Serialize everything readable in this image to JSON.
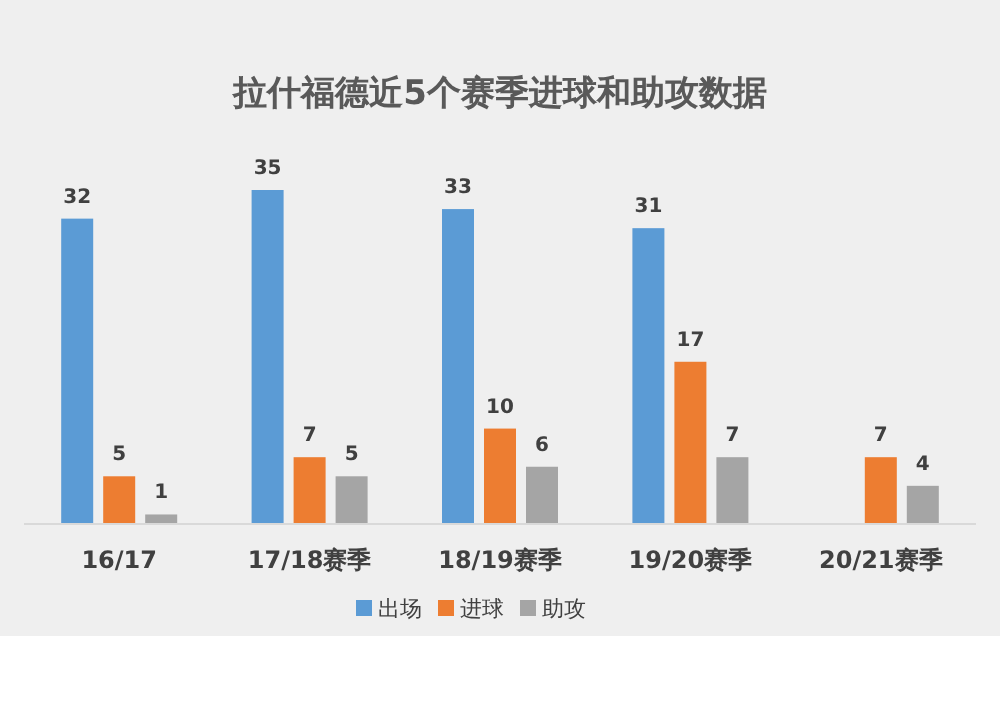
{
  "chart_data": {
    "type": "bar",
    "title": "拉什福德近5个赛季进球和助攻数据",
    "categories": [
      "16/17",
      "17/18赛季",
      "18/19赛季",
      "19/20赛季",
      "20/21赛季"
    ],
    "series": [
      {
        "name": "出场",
        "color": "#5b9bd5",
        "values": [
          32,
          35,
          33,
          31,
          null
        ]
      },
      {
        "name": "进球",
        "color": "#ed7d31",
        "values": [
          5,
          7,
          10,
          17,
          7
        ]
      },
      {
        "name": "助攻",
        "color": "#a5a5a5",
        "values": [
          1,
          5,
          6,
          7,
          4
        ]
      }
    ],
    "data_labels": true,
    "legend": "bottom"
  }
}
